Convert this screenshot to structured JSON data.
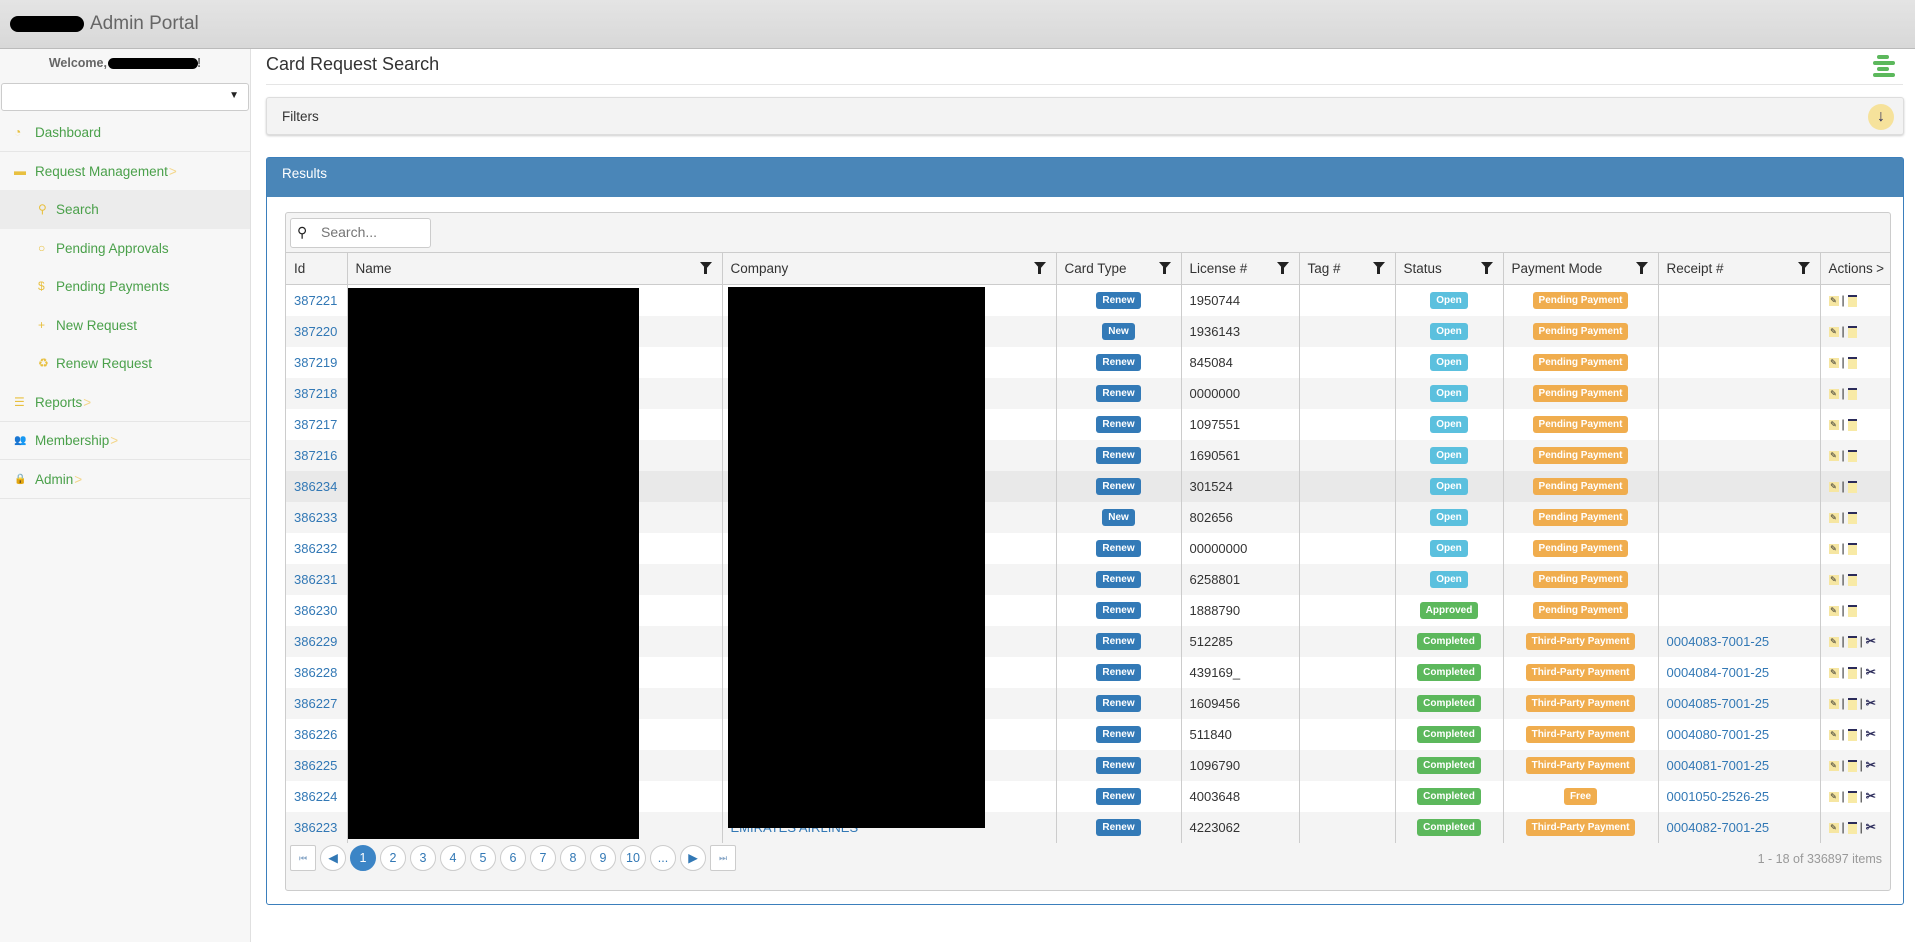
{
  "header": {
    "app_title": "Admin Portal"
  },
  "sidebar": {
    "welcome": "Welcome,",
    "welcome_suffix": "!",
    "items": [
      {
        "label": "Dashboard",
        "icon": "dashboard-icon",
        "level": "top"
      },
      {
        "label": "Request Management",
        "icon": "card-icon",
        "level": "top",
        "chevron": ">"
      },
      {
        "label": "Search",
        "icon": "search-icon",
        "level": "sub",
        "active": true
      },
      {
        "label": "Pending Approvals",
        "icon": "circle-icon",
        "level": "sub"
      },
      {
        "label": "Pending Payments",
        "icon": "money-bag-icon",
        "level": "sub"
      },
      {
        "label": "New Request",
        "icon": "plus-icon",
        "level": "sub"
      },
      {
        "label": "Renew Request",
        "icon": "recycle-icon",
        "level": "sub"
      },
      {
        "label": "Reports",
        "icon": "report-icon",
        "level": "top",
        "chevron": ">"
      },
      {
        "label": "Membership",
        "icon": "users-icon",
        "level": "top",
        "chevron": ">"
      },
      {
        "label": "Admin",
        "icon": "admin-lock-icon",
        "level": "top",
        "chevron": ">"
      }
    ]
  },
  "main": {
    "page_title": "Card Request Search",
    "filters_label": "Filters",
    "results_label": "Results",
    "search_placeholder": "Search...",
    "columns": [
      "Id",
      "Name",
      "Company",
      "Card Type",
      "License #",
      "Tag #",
      "Status",
      "Payment Mode",
      "Receipt #",
      "Actions"
    ],
    "actions_more": ">",
    "rows": [
      {
        "id": "387221",
        "card_type": "Renew",
        "license": "1950744",
        "tag": "",
        "status": "Open",
        "payment": "Pending Payment",
        "receipt": ""
      },
      {
        "id": "387220",
        "card_type": "New",
        "license": "1936143",
        "tag": "",
        "status": "Open",
        "payment": "Pending Payment",
        "receipt": ""
      },
      {
        "id": "387219",
        "card_type": "Renew",
        "license": "845084",
        "tag": "",
        "status": "Open",
        "payment": "Pending Payment",
        "receipt": ""
      },
      {
        "id": "387218",
        "card_type": "Renew",
        "license": "0000000",
        "tag": "",
        "status": "Open",
        "payment": "Pending Payment",
        "receipt": ""
      },
      {
        "id": "387217",
        "card_type": "Renew",
        "license": "1097551",
        "tag": "",
        "status": "Open",
        "payment": "Pending Payment",
        "receipt": ""
      },
      {
        "id": "387216",
        "card_type": "Renew",
        "license": "1690561",
        "tag": "",
        "status": "Open",
        "payment": "Pending Payment",
        "receipt": ""
      },
      {
        "id": "386234",
        "card_type": "Renew",
        "license": "301524",
        "tag": "",
        "status": "Open",
        "payment": "Pending Payment",
        "receipt": "",
        "hover": true
      },
      {
        "id": "386233",
        "card_type": "New",
        "license": "802656",
        "tag": "",
        "status": "Open",
        "payment": "Pending Payment",
        "receipt": ""
      },
      {
        "id": "386232",
        "card_type": "Renew",
        "license": "00000000",
        "tag": "",
        "status": "Open",
        "payment": "Pending Payment",
        "receipt": ""
      },
      {
        "id": "386231",
        "card_type": "Renew",
        "license": "6258801",
        "tag": "",
        "status": "Open",
        "payment": "Pending Payment",
        "receipt": ""
      },
      {
        "id": "386230",
        "card_type": "Renew",
        "license": "1888790",
        "tag": "",
        "status": "Approved",
        "payment": "Pending Payment",
        "receipt": ""
      },
      {
        "id": "386229",
        "card_type": "Renew",
        "license": "512285",
        "tag": "",
        "status": "Completed",
        "payment": "Third-Party Payment",
        "receipt": "0004083-7001-25"
      },
      {
        "id": "386228",
        "card_type": "Renew",
        "license": "439169_",
        "tag": "",
        "status": "Completed",
        "payment": "Third-Party Payment",
        "receipt": "0004084-7001-25"
      },
      {
        "id": "386227",
        "card_type": "Renew",
        "license": "1609456",
        "tag": "",
        "status": "Completed",
        "payment": "Third-Party Payment",
        "receipt": "0004085-7001-25"
      },
      {
        "id": "386226",
        "card_type": "Renew",
        "license": "511840",
        "tag": "",
        "status": "Completed",
        "payment": "Third-Party Payment",
        "receipt": "0004080-7001-25"
      },
      {
        "id": "386225",
        "card_type": "Renew",
        "license": "1096790",
        "tag": "",
        "status": "Completed",
        "payment": "Third-Party Payment",
        "receipt": "0004081-7001-25"
      },
      {
        "id": "386224",
        "card_type": "Renew",
        "license": "4003648",
        "tag": "",
        "status": "Completed",
        "payment": "Free",
        "receipt": "0001050-2526-25"
      },
      {
        "id": "386223",
        "company": "EMIRATES AIRLINES",
        "card_type": "Renew",
        "license": "4223062",
        "tag": "",
        "status": "Completed",
        "payment": "Third-Party Payment",
        "receipt": "0004082-7001-25"
      }
    ],
    "pager": {
      "first": "⏮",
      "prev": "◀",
      "pages": [
        "1",
        "2",
        "3",
        "4",
        "5",
        "6",
        "7",
        "8",
        "9",
        "10",
        "..."
      ],
      "current": "1",
      "next": "▶",
      "last": "⏭",
      "info": "1 - 18 of 336897 items"
    }
  },
  "colors": {
    "accent_green": "#5cb85c",
    "link_blue": "#3278b5",
    "results_header": "#4a86b8",
    "card_type": "#337ab7",
    "status": {
      "Open": "#5bc0de",
      "Approved": "#5cb85c",
      "Completed": "#5cb85c"
    },
    "payment": "#f0ad4e"
  }
}
